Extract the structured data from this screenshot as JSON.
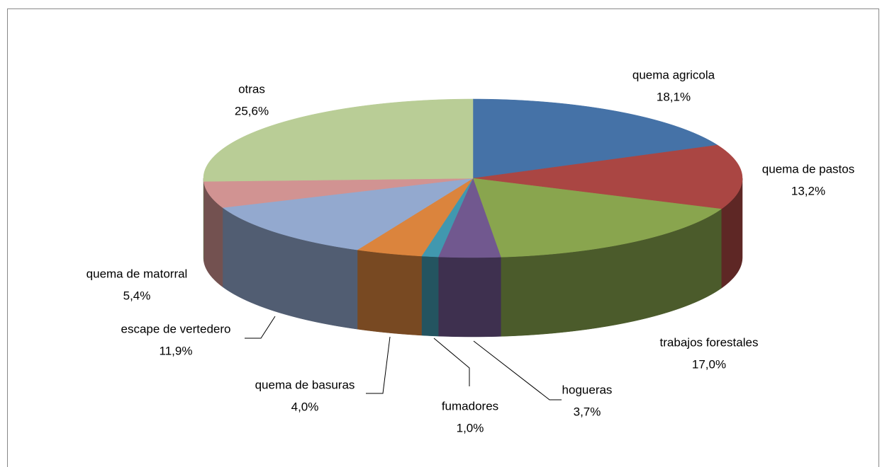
{
  "chart_data": {
    "type": "pie3d",
    "categories": [
      "quema agricola",
      "quema de pastos",
      "trabajos forestales",
      "hogueras",
      "fumadores",
      "quema de basuras",
      "escape de vertedero",
      "quema de matorral",
      "otras"
    ],
    "values": [
      18.1,
      13.2,
      17.0,
      3.7,
      1.0,
      4.0,
      11.9,
      5.4,
      25.6
    ],
    "value_labels": [
      "18,1%",
      "13,2%",
      "17,0%",
      "3,7%",
      "1,0%",
      "4,0%",
      "11,9%",
      "5,4%",
      "25,6%"
    ],
    "colors": [
      "#4572a7",
      "#aa4643",
      "#89a54e",
      "#71588f",
      "#4198af",
      "#db843d",
      "#93a9cf",
      "#d19392",
      "#b9cd96"
    ]
  }
}
